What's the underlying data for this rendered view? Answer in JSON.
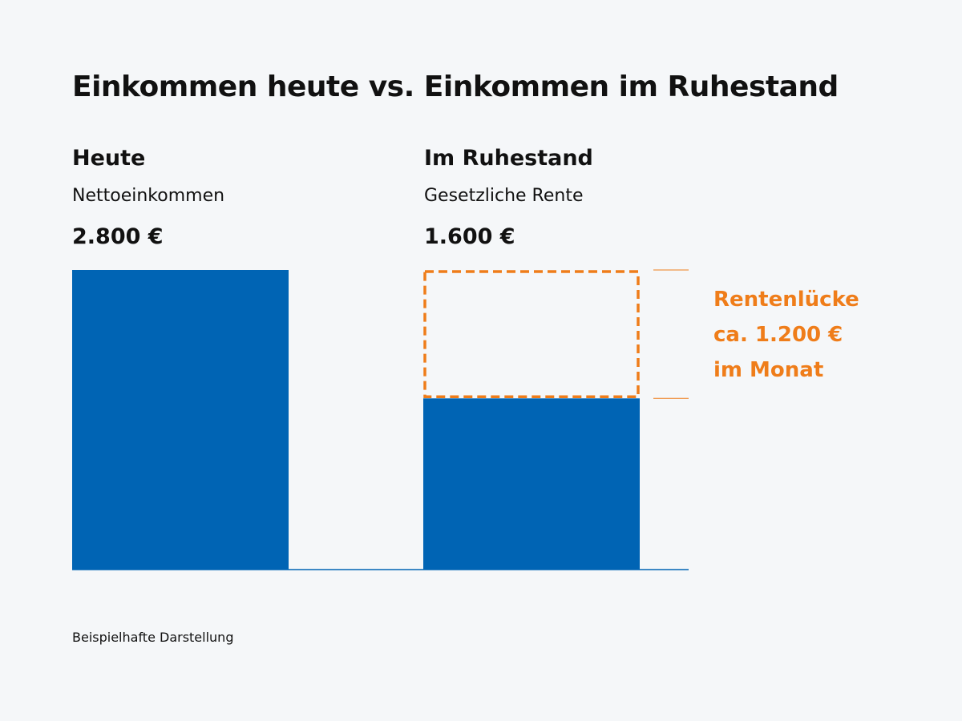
{
  "colors": {
    "background": "#f5f7f9",
    "bar": "#0064b4",
    "gap": "#ef7d1a",
    "text": "#111111"
  },
  "title": "Einkommen heute vs. Einkommen im Ruhestand",
  "columns": [
    {
      "heading": "Heute",
      "subheading": "Nettoeinkommen",
      "value_label": "2.800 €"
    },
    {
      "heading": "Im Ruhestand",
      "subheading": "Gesetzliche Rente",
      "value_label": "1.600 €"
    }
  ],
  "gap": {
    "lines": [
      "Rentenlücke",
      "ca. 1.200 €",
      "im Monat"
    ]
  },
  "footnote": "Beispielhafte Darstellung",
  "chart_data": {
    "type": "bar",
    "categories": [
      "Heute",
      "Im Ruhestand"
    ],
    "values": [
      2800,
      1600
    ],
    "gap_value": 1200,
    "unit": "€",
    "title": "Einkommen heute vs. Einkommen im Ruhestand",
    "ylim": [
      0,
      2800
    ],
    "grid": false,
    "legend": "none"
  }
}
